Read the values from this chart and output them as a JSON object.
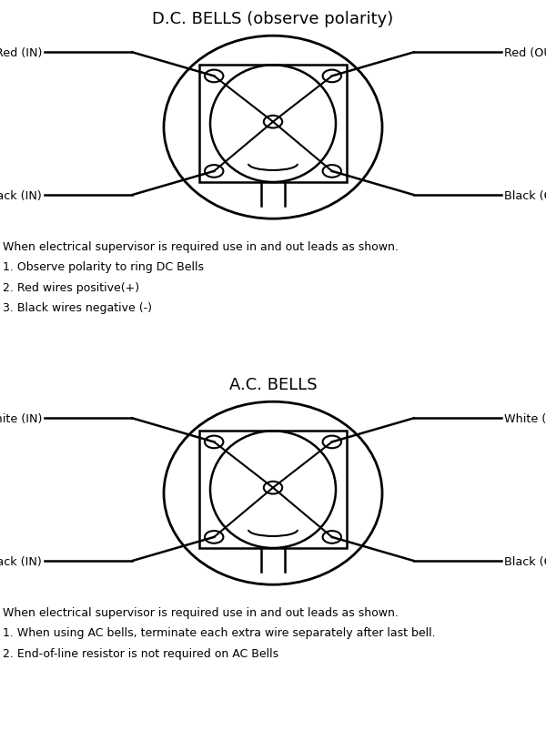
{
  "bg_color": "#ffffff",
  "line_color": "#000000",
  "text_color": "#000000",
  "dc_title": "D.C. BELLS (observe polarity)",
  "ac_title": "A.C. BELLS",
  "dc_notes": [
    "When electrical supervisor is required use in and out leads as shown.",
    "1. Observe polarity to ring DC Bells",
    "2. Red wires positive(+)",
    "3. Black wires negative (-)"
  ],
  "ac_notes": [
    "When electrical supervisor is required use in and out leads as shown.",
    "1. When using AC bells, terminate each extra wire separately after last bell.",
    "2. End-of-line resistor is not required on AC Bells"
  ],
  "dc_labels": {
    "top_left": "Red (IN)",
    "top_right": "Red (OUT)",
    "bot_left": "Black (IN)",
    "bot_right": "Black (OUT)"
  },
  "ac_labels": {
    "top_left": "White (IN)",
    "top_right": "White (OUT)",
    "bot_left": "Black (IN)",
    "bot_right": "Black (OUT)"
  }
}
